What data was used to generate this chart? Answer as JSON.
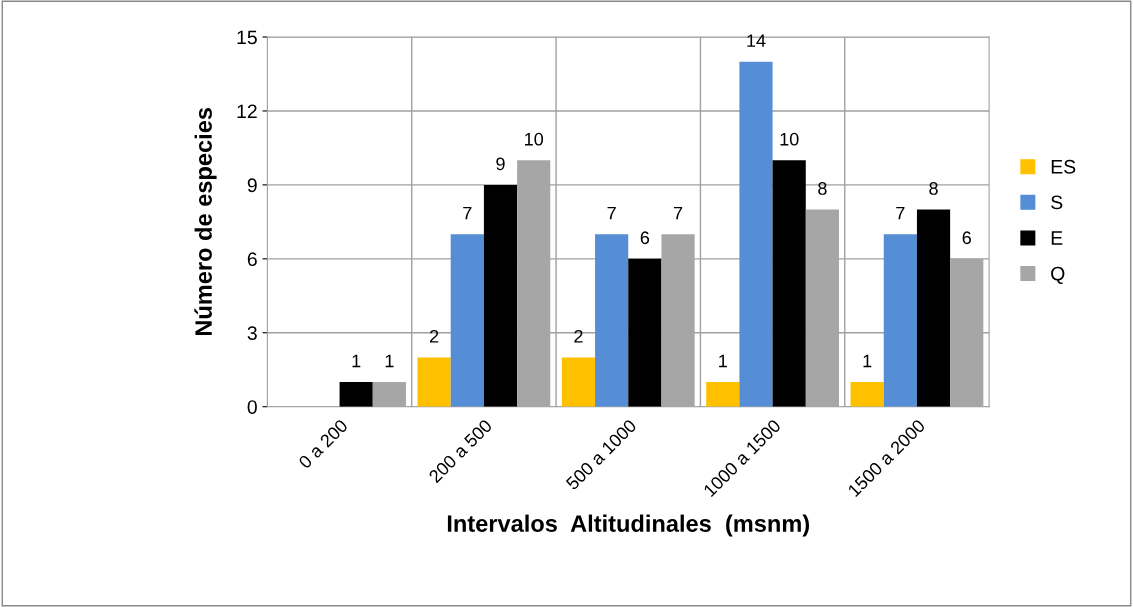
{
  "chart_data": {
    "type": "bar",
    "xlabel": "Intervalos  Altitudinales  (msnm)",
    "ylabel": "Número de especies",
    "categories": [
      "0 a 200",
      "200 a 500",
      "500 a 1000",
      "1000 a 1500",
      "1500 a 2000"
    ],
    "series": [
      {
        "name": "ES",
        "color": "#ffc000",
        "values": [
          null,
          2,
          2,
          1,
          1
        ]
      },
      {
        "name": "S",
        "color": "#558ed5",
        "values": [
          null,
          7,
          7,
          14,
          7
        ]
      },
      {
        "name": "E",
        "color": "#000000",
        "values": [
          1,
          9,
          6,
          10,
          8
        ]
      },
      {
        "name": "Q",
        "color": "#a6a6a6",
        "values": [
          1,
          10,
          7,
          8,
          6
        ]
      }
    ],
    "ylim": [
      0,
      15
    ],
    "yticks": [
      0,
      3,
      6,
      9,
      12,
      15
    ],
    "grid": true,
    "legend": "right",
    "data_labels": true
  }
}
